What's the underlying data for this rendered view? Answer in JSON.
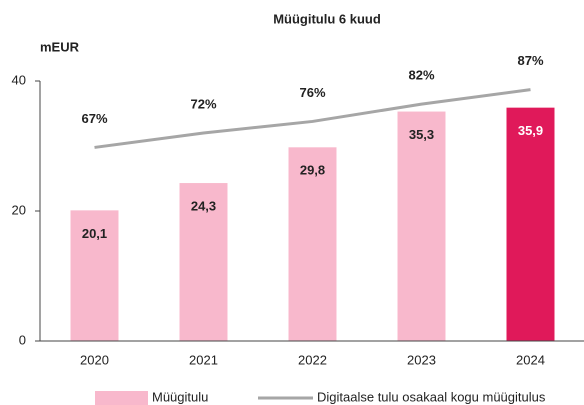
{
  "chart_data": {
    "type": "bar",
    "title": "Müügitulu 6 kuud",
    "y_label": "mEUR",
    "categories": [
      "2020",
      "2021",
      "2022",
      "2023",
      "2024"
    ],
    "ylim": [
      0,
      40
    ],
    "yticks": [
      0,
      20,
      40
    ],
    "y2lim": [
      0,
      90
    ],
    "series": [
      {
        "name": "Müügitulu",
        "type": "bar",
        "color": "#f8b8cc",
        "colors": [
          "#f8b8cc",
          "#f8b8cc",
          "#f8b8cc",
          "#f8b8cc",
          "#e0195a"
        ],
        "values": [
          20.1,
          24.3,
          29.8,
          35.3,
          35.9
        ],
        "value_labels": [
          "20,1",
          "24,3",
          "29,8",
          "35,3",
          "35,9"
        ]
      },
      {
        "name": "Digitaalse tulu osakaal kogu müügitulus",
        "type": "line",
        "axis": "y2",
        "color": "#a6a6a6",
        "values": [
          67,
          72,
          76,
          82,
          87
        ],
        "value_labels": [
          "67%",
          "72%",
          "76%",
          "82%",
          "87%"
        ]
      }
    ]
  }
}
